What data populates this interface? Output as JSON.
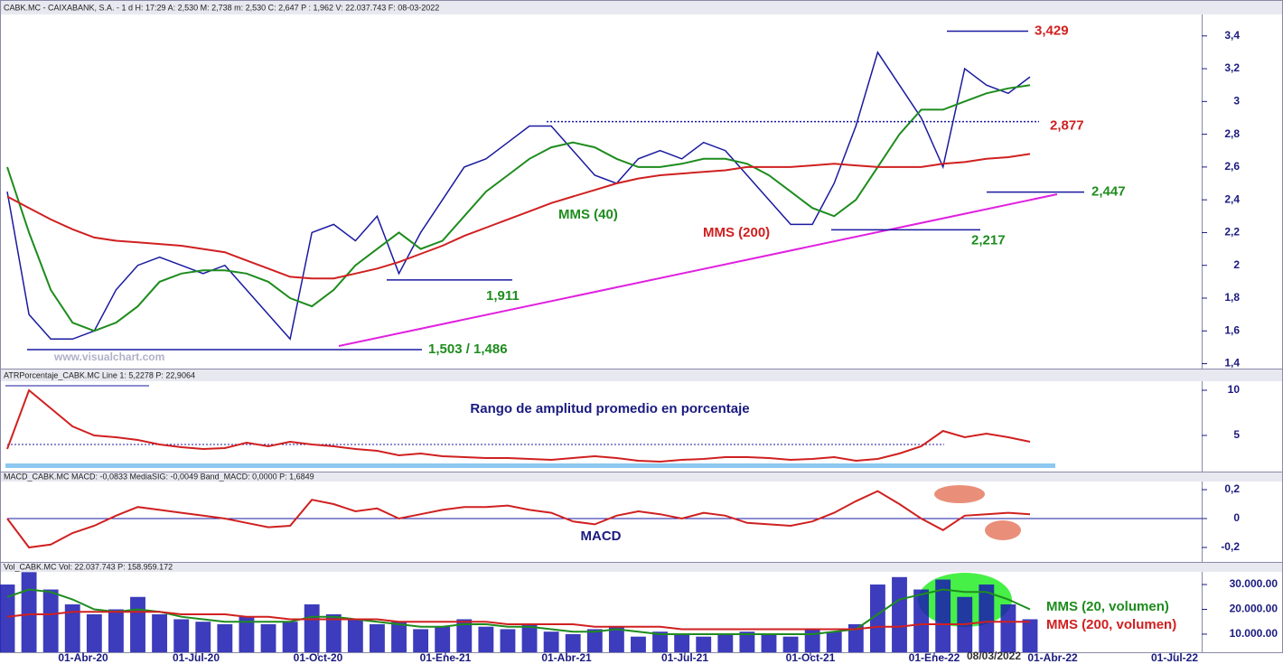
{
  "chart_data": [
    {
      "type": "line",
      "title": "CABK.MC - CAIXABANK, S.A. - 1 d H: 17:29 A: 2,530 M: 2,738 m: 2,530 C: 2,647 P : 1,962 V: 22.037.743 F: 08-03-2022",
      "watermark": "www.visualchart.com",
      "ylim": [
        1.37,
        3.52
      ],
      "yticks": [
        {
          "value": 1.4,
          "label": "1,4"
        },
        {
          "value": 1.6,
          "label": "1,6"
        },
        {
          "value": 1.8,
          "label": "1,8"
        },
        2,
        {
          "value": 2.2,
          "label": "2,2"
        },
        {
          "value": 2.4,
          "label": "2,4"
        },
        {
          "value": 2.6,
          "label": "2,6"
        },
        {
          "value": 2.8,
          "label": "2,8"
        },
        3,
        {
          "value": 3.2,
          "label": "3,2"
        },
        {
          "value": 3.4,
          "label": "3,4"
        }
      ],
      "series": [
        {
          "color": "#1a1aa0",
          "values": [
            2.45,
            1.7,
            1.55,
            1.55,
            1.6,
            1.85,
            2.0,
            2.05,
            2.0,
            1.95,
            2.0,
            1.85,
            1.7,
            1.55,
            2.2,
            2.25,
            2.15,
            2.3,
            1.95,
            2.2,
            2.4,
            2.6,
            2.65,
            2.75,
            2.85,
            2.85,
            2.7,
            2.55,
            2.5,
            2.65,
            2.7,
            2.65,
            2.75,
            2.7,
            2.55,
            2.4,
            2.25,
            2.25,
            2.5,
            2.85,
            3.3,
            3.1,
            2.9,
            2.6,
            3.2,
            3.1,
            3.05,
            3.15
          ]
        },
        {
          "name": "MMS (40)",
          "color": "#1e8c1e",
          "values": [
            2.6,
            2.2,
            1.85,
            1.65,
            1.6,
            1.65,
            1.75,
            1.9,
            1.95,
            1.97,
            1.97,
            1.95,
            1.9,
            1.8,
            1.75,
            1.85,
            2.0,
            2.1,
            2.2,
            2.1,
            2.15,
            2.3,
            2.45,
            2.55,
            2.65,
            2.72,
            2.75,
            2.72,
            2.65,
            2.6,
            2.6,
            2.62,
            2.65,
            2.65,
            2.62,
            2.55,
            2.45,
            2.35,
            2.3,
            2.4,
            2.6,
            2.8,
            2.95,
            2.95,
            3.0,
            3.05,
            3.08,
            3.1
          ]
        },
        {
          "name": "MMS (200)",
          "color": "#d02020",
          "values": [
            2.42,
            2.35,
            2.28,
            2.22,
            2.17,
            2.15,
            2.14,
            2.13,
            2.12,
            2.1,
            2.08,
            2.03,
            1.98,
            1.93,
            1.92,
            1.92,
            1.95,
            1.98,
            2.02,
            2.07,
            2.12,
            2.18,
            2.23,
            2.28,
            2.33,
            2.38,
            2.42,
            2.46,
            2.5,
            2.53,
            2.55,
            2.56,
            2.57,
            2.58,
            2.6,
            2.6,
            2.6,
            2.61,
            2.62,
            2.61,
            2.6,
            2.6,
            2.6,
            2.62,
            2.63,
            2.65,
            2.66,
            2.68
          ]
        }
      ],
      "levels": [
        {
          "value": 3.429,
          "label": "3,429",
          "color": "#d02020"
        },
        {
          "value": 2.877,
          "label": "2,877",
          "color": "#d02020"
        },
        {
          "value": 2.447,
          "label": "2,447",
          "color": "#1e8c1e"
        },
        {
          "value": 2.217,
          "label": "2,217",
          "color": "#1e8c1e"
        },
        {
          "value": 1.911,
          "label": "1,911",
          "color": "#1e8c1e"
        },
        {
          "value": 1.486,
          "label": "1,503 / 1,486",
          "color": "#1e8c1e"
        }
      ]
    },
    {
      "type": "line",
      "title": "ATRPorcentaje_CABK.MC Line 1: 5,2278 P: 22,9064",
      "annotation": "Rango de amplitud promedio en porcentaje",
      "ylim": [
        1.0,
        10.8
      ],
      "yticks": [
        5,
        10
      ],
      "series": [
        {
          "color": "#d02020",
          "values": [
            3.5,
            10,
            8,
            6,
            5,
            4.8,
            4.5,
            4,
            3.7,
            3.5,
            3.6,
            4.2,
            3.8,
            4.3,
            4,
            3.8,
            3.5,
            3.3,
            2.8,
            3,
            2.7,
            2.6,
            2.5,
            2.5,
            2.4,
            2.3,
            2.5,
            2.7,
            2.5,
            2.2,
            2.1,
            2.3,
            2.4,
            2.6,
            2.6,
            2.5,
            2.3,
            2.4,
            2.6,
            2.2,
            2.4,
            3,
            3.8,
            5.5,
            4.8,
            5.2,
            4.8,
            4.3
          ]
        }
      ]
    },
    {
      "type": "line",
      "title": "MACD_CABK.MC MACD: -0,0833 MediaSIG: -0,0049 Band_MACD: 0,0000 P: 1,6849",
      "annotation": "MACD",
      "ylim": [
        -0.3,
        0.275
      ],
      "yticks": [
        {
          "value": -0.2,
          "label": "-0,2"
        },
        0,
        {
          "value": 0.2,
          "label": "0,2"
        }
      ],
      "series": [
        {
          "color": "#d02020",
          "values": [
            0,
            -0.2,
            -0.18,
            -0.1,
            -0.05,
            0.02,
            0.08,
            0.06,
            0.04,
            0.02,
            0,
            -0.03,
            -0.06,
            -0.05,
            0.13,
            0.1,
            0.05,
            0.07,
            0,
            0.03,
            0.06,
            0.08,
            0.08,
            0.09,
            0.06,
            0.04,
            -0.02,
            -0.04,
            0.02,
            0.05,
            0.03,
            0,
            0.04,
            0.02,
            -0.03,
            -0.04,
            -0.05,
            -0.02,
            0.04,
            0.12,
            0.19,
            0.1,
            0,
            -0.08,
            0.02,
            0.03,
            0.04,
            0.03
          ]
        }
      ]
    },
    {
      "type": "bar",
      "title": "Vol_CABK.MC Vol: 22.037.743 P: 158.959.172",
      "ylim": [
        2700000,
        36200000
      ],
      "yticks": [
        {
          "value": 10000000,
          "label": "10.000.00"
        },
        {
          "value": 20000000,
          "label": "20.000.00"
        },
        {
          "value": 30000000,
          "label": "30.000.00"
        }
      ],
      "x_labels": [
        "01-Abr-20",
        "01-Jul-20",
        "01-Oct-20",
        "01-Ene-21",
        "01-Abr-21",
        "01-Jul-21",
        "01-Oct-21",
        "01-Ene-22",
        "01-Abr-22",
        "01-Jul-22"
      ],
      "date_marker": "08/03/2022",
      "values": [
        30000000,
        35000000,
        28000000,
        22000000,
        18000000,
        20000000,
        25000000,
        18000000,
        16000000,
        15000000,
        14000000,
        17000000,
        14000000,
        15000000,
        22000000,
        18000000,
        16000000,
        14000000,
        15000000,
        12000000,
        13000000,
        16000000,
        13000000,
        12000000,
        14000000,
        11000000,
        10000000,
        12000000,
        13000000,
        9000000,
        11000000,
        10000000,
        9000000,
        10000000,
        11000000,
        10000000,
        9000000,
        12000000,
        11000000,
        14000000,
        30000000,
        33000000,
        28000000,
        32000000,
        25000000,
        30000000,
        22000000,
        16000000
      ],
      "color": "#1a1ab0",
      "series": [
        {
          "name": "MMS (20, volumen)",
          "color": "#1e8c1e",
          "values": [
            25000000,
            28000000,
            27000000,
            24000000,
            20000000,
            19000000,
            20000000,
            19000000,
            17000000,
            16000000,
            15000000,
            15000000,
            15000000,
            15000000,
            17000000,
            17000000,
            16000000,
            15000000,
            14000000,
            13000000,
            13000000,
            14000000,
            14000000,
            13000000,
            13000000,
            12000000,
            11000000,
            11000000,
            12000000,
            11000000,
            10000000,
            10000000,
            10000000,
            10000000,
            10000000,
            10000000,
            10000000,
            10000000,
            11000000,
            12000000,
            18000000,
            24000000,
            26000000,
            28000000,
            27000000,
            27000000,
            24000000,
            20000000
          ]
        },
        {
          "name": "MMS (200, volumen)",
          "color": "#d02020",
          "values": [
            17000000,
            18000000,
            18000000,
            19000000,
            19000000,
            19000000,
            19000000,
            19000000,
            18000000,
            18000000,
            18000000,
            17000000,
            17000000,
            16000000,
            16000000,
            16000000,
            16000000,
            16000000,
            15000000,
            15000000,
            15000000,
            15000000,
            15000000,
            14000000,
            14000000,
            14000000,
            14000000,
            13000000,
            13000000,
            13000000,
            13000000,
            12000000,
            12000000,
            12000000,
            12000000,
            12000000,
            12000000,
            12000000,
            12000000,
            12000000,
            13000000,
            13000000,
            14000000,
            14000000,
            14000000,
            15000000,
            15000000,
            15000000
          ]
        }
      ]
    }
  ]
}
